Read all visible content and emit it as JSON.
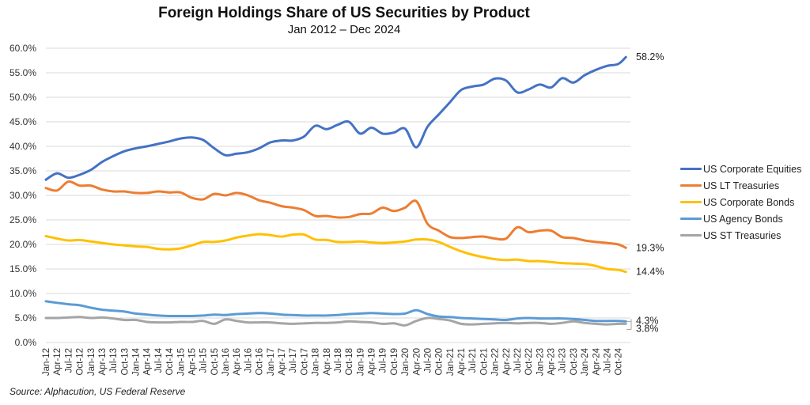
{
  "chart_data": {
    "type": "line",
    "title": "Foreign Holdings Share of US Securities by Product",
    "subtitle": "Jan 2012 – Dec 2024",
    "xlabel": "",
    "ylabel": "",
    "ylim": [
      0,
      60
    ],
    "yticks": [
      "0.0%",
      "5.0%",
      "10.0%",
      "15.0%",
      "20.0%",
      "25.0%",
      "30.0%",
      "35.0%",
      "40.0%",
      "45.0%",
      "50.0%",
      "55.0%",
      "60.0%"
    ],
    "grid": true,
    "legend_position": "right",
    "x": [
      "Jan-12",
      "Apr-12",
      "Jul-12",
      "Oct-12",
      "Jan-13",
      "Apr-13",
      "Jul-13",
      "Oct-13",
      "Jan-14",
      "Apr-14",
      "Jul-14",
      "Oct-14",
      "Jan-15",
      "Apr-15",
      "Jul-15",
      "Oct-15",
      "Jan-16",
      "Apr-16",
      "Jul-16",
      "Oct-16",
      "Jan-17",
      "Apr-17",
      "Jul-17",
      "Oct-17",
      "Jan-18",
      "Apr-18",
      "Jul-18",
      "Oct-18",
      "Jan-19",
      "Apr-19",
      "Jul-19",
      "Oct-19",
      "Jan-20",
      "Apr-20",
      "Jul-20",
      "Oct-20",
      "Jan-21",
      "Apr-21",
      "Jul-21",
      "Oct-21",
      "Jan-22",
      "Apr-22",
      "Jul-22",
      "Oct-22",
      "Jan-23",
      "Apr-23",
      "Jul-23",
      "Oct-23",
      "Jan-24",
      "Apr-24",
      "Jul-24",
      "Oct-24",
      "Dec-24"
    ],
    "xticks": [
      "Jan-12",
      "Apr-12",
      "Jul-12",
      "Oct-12",
      "Jan-13",
      "Apr-13",
      "Jul-13",
      "Oct-13",
      "Jan-14",
      "Apr-14",
      "Jul-14",
      "Oct-14",
      "Jan-15",
      "Apr-15",
      "Jul-15",
      "Oct-15",
      "Jan-16",
      "Apr-16",
      "Jul-16",
      "Oct-16",
      "Jan-17",
      "Apr-17",
      "Jul-17",
      "Oct-17",
      "Jan-18",
      "Apr-18",
      "Jul-18",
      "Oct-18",
      "Jan-19",
      "Apr-19",
      "Jul-19",
      "Oct-19",
      "Jan-20",
      "Apr-20",
      "Jul-20",
      "Oct-20",
      "Jan-21",
      "Apr-21",
      "Jul-21",
      "Oct-21",
      "Jan-22",
      "Apr-22",
      "Jul-22",
      "Oct-22",
      "Jan-23",
      "Apr-23",
      "Jul-23",
      "Oct-23",
      "Jan-24",
      "Apr-24",
      "Jul-24",
      "Oct-24"
    ],
    "x_month_index": [
      0,
      3,
      6,
      9,
      12,
      15,
      18,
      21,
      24,
      27,
      30,
      33,
      36,
      39,
      42,
      45,
      48,
      51,
      54,
      57,
      60,
      63,
      66,
      69,
      72,
      75,
      78,
      81,
      84,
      87,
      90,
      93,
      96,
      99,
      102,
      105,
      108,
      111,
      114,
      117,
      120,
      123,
      126,
      129,
      132,
      135,
      138,
      141,
      144,
      147,
      150,
      153,
      155
    ],
    "series": [
      {
        "name": "US Corporate Equities",
        "color": "#4472C4",
        "end_label": "58.2%",
        "values": [
          33.2,
          34.5,
          33.6,
          34.2,
          35.2,
          36.8,
          38.0,
          39.0,
          39.6,
          40.0,
          40.5,
          41.0,
          41.6,
          41.8,
          41.3,
          39.6,
          38.2,
          38.5,
          38.8,
          39.6,
          40.8,
          41.2,
          41.2,
          42.0,
          44.2,
          43.5,
          44.4,
          45.0,
          42.6,
          43.8,
          42.6,
          42.8,
          43.6,
          39.8,
          44.0,
          46.5,
          49.0,
          51.5,
          52.2,
          52.6,
          53.8,
          53.4,
          51.0,
          51.6,
          52.6,
          52.0,
          53.9,
          53.0,
          54.5,
          55.6,
          56.4,
          56.8,
          58.2
        ]
      },
      {
        "name": "US LT Treasuries",
        "color": "#ED7D31",
        "end_label": "19.3%",
        "values": [
          31.5,
          31.0,
          32.8,
          32.0,
          32.0,
          31.2,
          30.8,
          30.8,
          30.5,
          30.5,
          30.8,
          30.6,
          30.6,
          29.5,
          29.2,
          30.3,
          30.0,
          30.5,
          30.0,
          29.0,
          28.5,
          27.8,
          27.5,
          27.0,
          25.8,
          25.8,
          25.5,
          25.6,
          26.2,
          26.3,
          27.5,
          26.8,
          27.5,
          28.8,
          24.2,
          22.8,
          21.5,
          21.3,
          21.5,
          21.6,
          21.2,
          21.2,
          23.5,
          22.5,
          22.8,
          22.8,
          21.5,
          21.3,
          20.8,
          20.5,
          20.3,
          20.0,
          19.3
        ]
      },
      {
        "name": "US Corporate Bonds",
        "color": "#FFC000",
        "end_label": "14.4%",
        "values": [
          21.7,
          21.2,
          20.8,
          20.9,
          20.6,
          20.3,
          20.0,
          19.8,
          19.6,
          19.5,
          19.1,
          19.0,
          19.2,
          19.8,
          20.5,
          20.5,
          20.8,
          21.4,
          21.8,
          22.1,
          21.9,
          21.6,
          22.0,
          22.0,
          21.0,
          20.9,
          20.5,
          20.5,
          20.6,
          20.4,
          20.3,
          20.4,
          20.6,
          21.0,
          21.0,
          20.5,
          19.5,
          18.6,
          17.9,
          17.4,
          17.0,
          16.8,
          16.9,
          16.6,
          16.6,
          16.4,
          16.2,
          16.1,
          16.0,
          15.6,
          15.0,
          14.8,
          14.4
        ]
      },
      {
        "name": "US Agency Bonds",
        "color": "#5B9BD5",
        "end_label": "4.3%",
        "values": [
          8.4,
          8.1,
          7.8,
          7.6,
          7.1,
          6.7,
          6.5,
          6.3,
          5.9,
          5.7,
          5.5,
          5.4,
          5.4,
          5.4,
          5.5,
          5.7,
          5.6,
          5.8,
          5.9,
          6.0,
          5.9,
          5.7,
          5.6,
          5.5,
          5.5,
          5.5,
          5.6,
          5.8,
          5.9,
          6.0,
          5.9,
          5.8,
          5.9,
          6.6,
          5.8,
          5.3,
          5.2,
          5.0,
          4.9,
          4.8,
          4.7,
          4.6,
          4.9,
          5.0,
          4.9,
          4.9,
          4.9,
          4.8,
          4.6,
          4.4,
          4.4,
          4.4,
          4.3
        ]
      },
      {
        "name": "US ST Treasuries",
        "color": "#A5A5A5",
        "end_label": "3.8%",
        "values": [
          5.0,
          5.0,
          5.1,
          5.2,
          5.0,
          5.1,
          4.9,
          4.6,
          4.6,
          4.2,
          4.1,
          4.1,
          4.2,
          4.2,
          4.4,
          3.8,
          4.7,
          4.4,
          4.1,
          4.1,
          4.1,
          3.9,
          3.8,
          3.9,
          4.0,
          4.0,
          4.1,
          4.3,
          4.2,
          4.1,
          3.8,
          3.9,
          3.5,
          4.4,
          5.0,
          4.8,
          4.5,
          3.8,
          3.7,
          3.8,
          3.9,
          4.0,
          3.9,
          4.0,
          4.0,
          3.8,
          4.0,
          4.3,
          4.0,
          3.8,
          3.7,
          3.8,
          3.8
        ]
      }
    ],
    "annotations": [
      "58.2%",
      "19.3%",
      "14.4%",
      "4.3%",
      "3.8%"
    ],
    "source": "Source: Alphacution, US Federal Reserve"
  }
}
